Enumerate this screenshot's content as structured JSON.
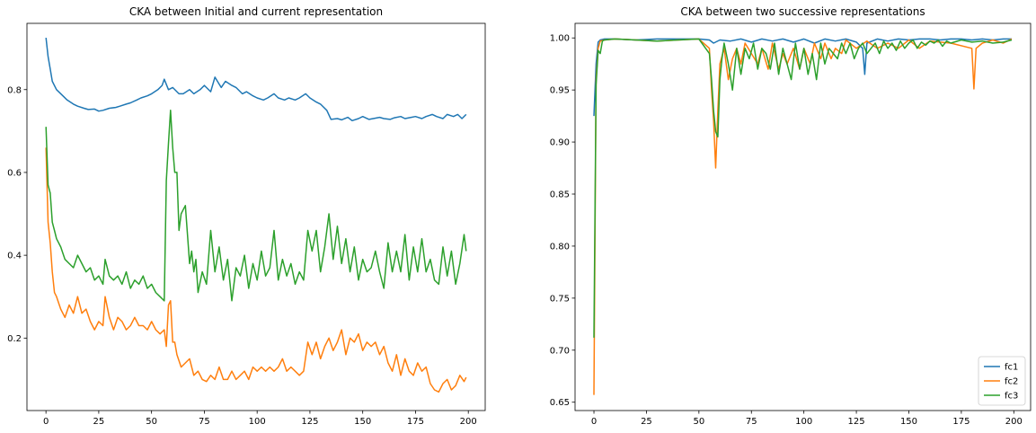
{
  "chart_data": [
    {
      "type": "line",
      "title": "CKA between Initial and current representation",
      "xlabel": "",
      "ylabel": "",
      "xlim": [
        -9,
        208
      ],
      "ylim": [
        0.025,
        0.96
      ],
      "xticks": [
        0,
        25,
        50,
        75,
        100,
        125,
        150,
        175,
        200
      ],
      "yticks": [
        0.2,
        0.4,
        0.6,
        0.8
      ],
      "xtick_labels": [
        "0",
        "25",
        "50",
        "75",
        "100",
        "125",
        "150",
        "175",
        "200"
      ],
      "ytick_labels": [
        "0.2",
        "0.4",
        "0.6",
        "0.8"
      ],
      "grid": false,
      "series": [
        {
          "color": "#1f77b4",
          "x": [
            0,
            1,
            2,
            3,
            5,
            8,
            10,
            13,
            15,
            18,
            20,
            23,
            25,
            27,
            30,
            33,
            35,
            38,
            40,
            43,
            45,
            48,
            50,
            53,
            55,
            56,
            58,
            60,
            63,
            65,
            68,
            70,
            73,
            75,
            78,
            80,
            83,
            85,
            88,
            90,
            93,
            95,
            98,
            100,
            103,
            105,
            108,
            110,
            113,
            115,
            118,
            120,
            123,
            125,
            128,
            130,
            133,
            135,
            138,
            140,
            143,
            145,
            148,
            150,
            153,
            155,
            158,
            160,
            163,
            165,
            168,
            170,
            173,
            175,
            178,
            180,
            183,
            185,
            188,
            190,
            193,
            195,
            197,
            199
          ],
          "values": [
            0.925,
            0.88,
            0.85,
            0.82,
            0.8,
            0.785,
            0.775,
            0.765,
            0.76,
            0.755,
            0.752,
            0.753,
            0.748,
            0.75,
            0.755,
            0.757,
            0.76,
            0.765,
            0.768,
            0.775,
            0.78,
            0.785,
            0.79,
            0.8,
            0.81,
            0.825,
            0.8,
            0.805,
            0.79,
            0.79,
            0.8,
            0.79,
            0.8,
            0.81,
            0.795,
            0.83,
            0.805,
            0.82,
            0.81,
            0.805,
            0.79,
            0.795,
            0.785,
            0.78,
            0.775,
            0.78,
            0.79,
            0.78,
            0.775,
            0.78,
            0.775,
            0.78,
            0.79,
            0.78,
            0.77,
            0.765,
            0.75,
            0.728,
            0.73,
            0.727,
            0.733,
            0.725,
            0.73,
            0.735,
            0.728,
            0.73,
            0.733,
            0.73,
            0.728,
            0.732,
            0.735,
            0.73,
            0.733,
            0.735,
            0.73,
            0.735,
            0.74,
            0.735,
            0.73,
            0.74,
            0.735,
            0.74,
            0.73,
            0.74
          ]
        },
        {
          "color": "#ff7f0e",
          "x": [
            0,
            1,
            2,
            3,
            4,
            5,
            7,
            9,
            11,
            13,
            15,
            17,
            19,
            21,
            23,
            25,
            27,
            28,
            30,
            32,
            34,
            36,
            38,
            40,
            42,
            44,
            46,
            48,
            50,
            52,
            54,
            56,
            57,
            58,
            59,
            60,
            61,
            62,
            64,
            66,
            68,
            70,
            72,
            74,
            76,
            78,
            80,
            82,
            84,
            86,
            88,
            90,
            92,
            94,
            96,
            98,
            100,
            102,
            104,
            106,
            108,
            110,
            112,
            114,
            116,
            118,
            120,
            122,
            124,
            126,
            128,
            130,
            132,
            134,
            136,
            138,
            140,
            142,
            144,
            146,
            148,
            150,
            152,
            154,
            156,
            158,
            160,
            162,
            164,
            166,
            168,
            170,
            172,
            174,
            176,
            178,
            180,
            182,
            184,
            186,
            188,
            190,
            192,
            194,
            196,
            198,
            199
          ],
          "values": [
            0.66,
            0.48,
            0.43,
            0.36,
            0.31,
            0.3,
            0.27,
            0.25,
            0.28,
            0.26,
            0.3,
            0.26,
            0.27,
            0.24,
            0.22,
            0.24,
            0.23,
            0.3,
            0.25,
            0.22,
            0.25,
            0.24,
            0.22,
            0.23,
            0.25,
            0.23,
            0.23,
            0.22,
            0.24,
            0.22,
            0.21,
            0.22,
            0.18,
            0.28,
            0.29,
            0.19,
            0.19,
            0.16,
            0.13,
            0.14,
            0.15,
            0.11,
            0.12,
            0.1,
            0.095,
            0.11,
            0.1,
            0.13,
            0.1,
            0.1,
            0.12,
            0.1,
            0.11,
            0.12,
            0.1,
            0.13,
            0.12,
            0.13,
            0.12,
            0.13,
            0.12,
            0.13,
            0.15,
            0.12,
            0.13,
            0.12,
            0.11,
            0.12,
            0.19,
            0.16,
            0.19,
            0.15,
            0.18,
            0.2,
            0.17,
            0.19,
            0.22,
            0.16,
            0.2,
            0.19,
            0.21,
            0.17,
            0.19,
            0.18,
            0.19,
            0.16,
            0.18,
            0.14,
            0.12,
            0.16,
            0.11,
            0.15,
            0.12,
            0.11,
            0.14,
            0.12,
            0.13,
            0.09,
            0.075,
            0.07,
            0.09,
            0.1,
            0.075,
            0.085,
            0.11,
            0.095,
            0.105
          ]
        },
        {
          "color": "#2ca02c",
          "x": [
            0,
            1,
            2,
            3,
            4,
            5,
            7,
            9,
            11,
            13,
            15,
            17,
            19,
            21,
            23,
            25,
            27,
            28,
            30,
            32,
            34,
            36,
            38,
            40,
            42,
            44,
            46,
            48,
            50,
            52,
            54,
            56,
            57,
            58,
            59,
            60,
            61,
            62,
            63,
            64,
            65,
            66,
            68,
            69,
            70,
            71,
            72,
            74,
            76,
            78,
            80,
            82,
            84,
            86,
            88,
            90,
            92,
            94,
            96,
            98,
            100,
            102,
            104,
            106,
            108,
            110,
            112,
            114,
            116,
            118,
            120,
            122,
            124,
            126,
            128,
            130,
            132,
            134,
            136,
            138,
            140,
            142,
            144,
            146,
            148,
            150,
            152,
            154,
            156,
            158,
            160,
            162,
            164,
            166,
            168,
            170,
            172,
            174,
            176,
            178,
            180,
            182,
            184,
            186,
            188,
            190,
            192,
            194,
            196,
            198,
            199
          ],
          "values": [
            0.71,
            0.57,
            0.55,
            0.48,
            0.46,
            0.44,
            0.42,
            0.39,
            0.38,
            0.37,
            0.4,
            0.38,
            0.36,
            0.37,
            0.34,
            0.35,
            0.33,
            0.39,
            0.35,
            0.34,
            0.35,
            0.33,
            0.36,
            0.32,
            0.34,
            0.33,
            0.35,
            0.32,
            0.33,
            0.31,
            0.3,
            0.29,
            0.58,
            0.67,
            0.75,
            0.66,
            0.6,
            0.6,
            0.46,
            0.5,
            0.51,
            0.52,
            0.38,
            0.41,
            0.36,
            0.39,
            0.31,
            0.36,
            0.33,
            0.46,
            0.36,
            0.42,
            0.34,
            0.39,
            0.29,
            0.37,
            0.35,
            0.4,
            0.32,
            0.38,
            0.34,
            0.41,
            0.35,
            0.37,
            0.46,
            0.34,
            0.39,
            0.35,
            0.38,
            0.33,
            0.36,
            0.34,
            0.46,
            0.41,
            0.46,
            0.36,
            0.42,
            0.5,
            0.39,
            0.47,
            0.38,
            0.44,
            0.36,
            0.42,
            0.34,
            0.39,
            0.36,
            0.37,
            0.41,
            0.36,
            0.32,
            0.43,
            0.36,
            0.41,
            0.36,
            0.45,
            0.34,
            0.42,
            0.36,
            0.44,
            0.36,
            0.39,
            0.34,
            0.33,
            0.42,
            0.35,
            0.41,
            0.33,
            0.38,
            0.45,
            0.41
          ]
        }
      ]
    },
    {
      "type": "line",
      "title": "CKA between two successive representations",
      "xlabel": "",
      "ylabel": "",
      "xlim": [
        -9,
        208
      ],
      "ylim": [
        0.642,
        1.014
      ],
      "xticks": [
        0,
        25,
        50,
        75,
        100,
        125,
        150,
        175,
        200
      ],
      "yticks": [
        0.65,
        0.7,
        0.75,
        0.8,
        0.85,
        0.9,
        0.95,
        1.0
      ],
      "xtick_labels": [
        "0",
        "25",
        "50",
        "75",
        "100",
        "125",
        "150",
        "175",
        "200"
      ],
      "ytick_labels": [
        "0.65",
        "0.70",
        "0.75",
        "0.80",
        "0.85",
        "0.90",
        "0.95",
        "1.00"
      ],
      "grid": false,
      "legend": {
        "placement": "lower-right",
        "entries": [
          "fc1",
          "fc2",
          "fc3"
        ]
      },
      "series": [
        {
          "name": "fc1",
          "color": "#1f77b4",
          "x": [
            0,
            1,
            2,
            3,
            5,
            10,
            20,
            30,
            40,
            50,
            55,
            57,
            60,
            65,
            70,
            75,
            80,
            85,
            90,
            95,
            100,
            105,
            110,
            115,
            120,
            125,
            128,
            129,
            130,
            135,
            140,
            145,
            150,
            155,
            160,
            165,
            170,
            175,
            180,
            185,
            190,
            195,
            199
          ],
          "values": [
            0.925,
            0.975,
            0.996,
            0.998,
            0.999,
            0.999,
            0.998,
            0.999,
            0.999,
            0.999,
            0.998,
            0.995,
            0.998,
            0.997,
            0.999,
            0.996,
            0.999,
            0.997,
            0.999,
            0.996,
            0.999,
            0.995,
            0.999,
            0.997,
            0.999,
            0.996,
            0.99,
            0.965,
            0.995,
            0.999,
            0.997,
            0.999,
            0.998,
            0.999,
            0.999,
            0.998,
            0.999,
            0.999,
            0.998,
            0.999,
            0.998,
            0.999,
            0.999
          ]
        },
        {
          "name": "fc2",
          "color": "#ff7f0e",
          "x": [
            0,
            1,
            2,
            3,
            5,
            10,
            20,
            30,
            40,
            50,
            55,
            56,
            57,
            58,
            59,
            60,
            62,
            64,
            66,
            68,
            70,
            72,
            75,
            78,
            80,
            83,
            85,
            88,
            90,
            92,
            95,
            98,
            100,
            103,
            105,
            108,
            110,
            113,
            115,
            118,
            120,
            125,
            130,
            135,
            140,
            145,
            150,
            155,
            160,
            170,
            180,
            181,
            182,
            185,
            190,
            195,
            199
          ],
          "values": [
            0.657,
            0.96,
            0.99,
            0.997,
            0.998,
            0.999,
            0.998,
            0.997,
            0.998,
            0.999,
            0.99,
            0.95,
            0.92,
            0.875,
            0.93,
            0.975,
            0.99,
            0.96,
            0.98,
            0.99,
            0.975,
            0.995,
            0.985,
            0.975,
            0.99,
            0.97,
            0.995,
            0.97,
            0.985,
            0.975,
            0.99,
            0.97,
            0.99,
            0.975,
            0.995,
            0.98,
            0.995,
            0.98,
            0.99,
            0.985,
            0.998,
            0.99,
            0.997,
            0.99,
            0.995,
            0.99,
            0.998,
            0.99,
            0.997,
            0.995,
            0.99,
            0.951,
            0.99,
            0.995,
            0.998,
            0.995,
            0.999
          ]
        },
        {
          "name": "fc3",
          "color": "#2ca02c",
          "x": [
            0,
            1,
            2,
            3,
            4,
            5,
            10,
            20,
            30,
            40,
            50,
            55,
            56,
            57,
            58,
            59,
            60,
            61,
            62,
            64,
            66,
            68,
            70,
            72,
            74,
            76,
            78,
            80,
            82,
            84,
            86,
            88,
            90,
            92,
            94,
            96,
            98,
            100,
            102,
            104,
            106,
            108,
            110,
            112,
            114,
            116,
            118,
            120,
            122,
            124,
            126,
            128,
            130,
            132,
            134,
            136,
            138,
            140,
            142,
            144,
            146,
            148,
            150,
            152,
            154,
            156,
            158,
            160,
            162,
            164,
            166,
            168,
            170,
            175,
            180,
            185,
            190,
            195,
            199
          ],
          "values": [
            0.712,
            0.955,
            0.988,
            0.985,
            0.997,
            0.998,
            0.999,
            0.998,
            0.997,
            0.998,
            0.999,
            0.985,
            0.96,
            0.93,
            0.91,
            0.905,
            0.96,
            0.98,
            0.995,
            0.975,
            0.95,
            0.99,
            0.965,
            0.99,
            0.98,
            0.995,
            0.97,
            0.99,
            0.985,
            0.97,
            0.995,
            0.965,
            0.99,
            0.975,
            0.96,
            0.995,
            0.97,
            0.99,
            0.965,
            0.985,
            0.96,
            0.995,
            0.975,
            0.99,
            0.985,
            0.98,
            0.995,
            0.985,
            0.995,
            0.98,
            0.99,
            0.995,
            0.985,
            0.99,
            0.995,
            0.985,
            0.997,
            0.99,
            0.995,
            0.988,
            0.997,
            0.99,
            0.995,
            0.998,
            0.99,
            0.996,
            0.993,
            0.997,
            0.995,
            0.998,
            0.992,
            0.997,
            0.995,
            0.998,
            0.996,
            0.997,
            0.995,
            0.996,
            0.998
          ]
        }
      ]
    }
  ]
}
